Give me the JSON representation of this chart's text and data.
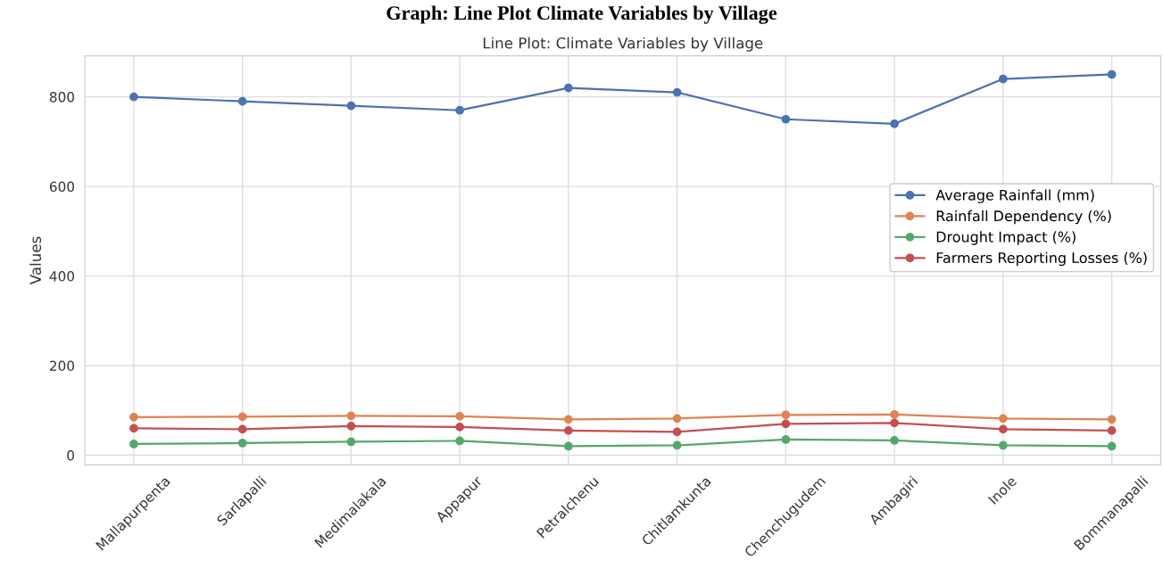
{
  "chart_data": {
    "type": "line",
    "title": "Graph: Line Plot Climate Variables by Village",
    "subtitle": "Line Plot: Climate Variables by Village",
    "ylabel": "Values",
    "categories": [
      "Mallapurpenta",
      "Sarlapalli",
      "Medimalakala",
      "Appapur",
      "Petralchenu",
      "Chitlamkunta",
      "Chenchugudem",
      "Ambagiri",
      "Inole",
      "Bommanapalli"
    ],
    "series": [
      {
        "name": "Average Rainfall (mm)",
        "color": "#4c72b0",
        "values": [
          800,
          790,
          780,
          770,
          820,
          810,
          750,
          740,
          840,
          850
        ]
      },
      {
        "name": "Rainfall Dependency (%)",
        "color": "#dd8452",
        "values": [
          85,
          86,
          88,
          87,
          80,
          82,
          90,
          91,
          82,
          80
        ]
      },
      {
        "name": "Drought Impact (%)",
        "color": "#55a868",
        "values": [
          25,
          27,
          30,
          32,
          20,
          22,
          35,
          33,
          22,
          20
        ]
      },
      {
        "name": "Farmers Reporting Losses (%)",
        "color": "#c44e52",
        "values": [
          60,
          58,
          65,
          63,
          55,
          52,
          70,
          72,
          58,
          55
        ]
      }
    ],
    "ylim": [
      -21.5,
      891.5
    ],
    "yticks": [
      0,
      200,
      400,
      600,
      800
    ],
    "grid": true,
    "legend": "right",
    "marker": "circle",
    "line_style": "solid"
  }
}
